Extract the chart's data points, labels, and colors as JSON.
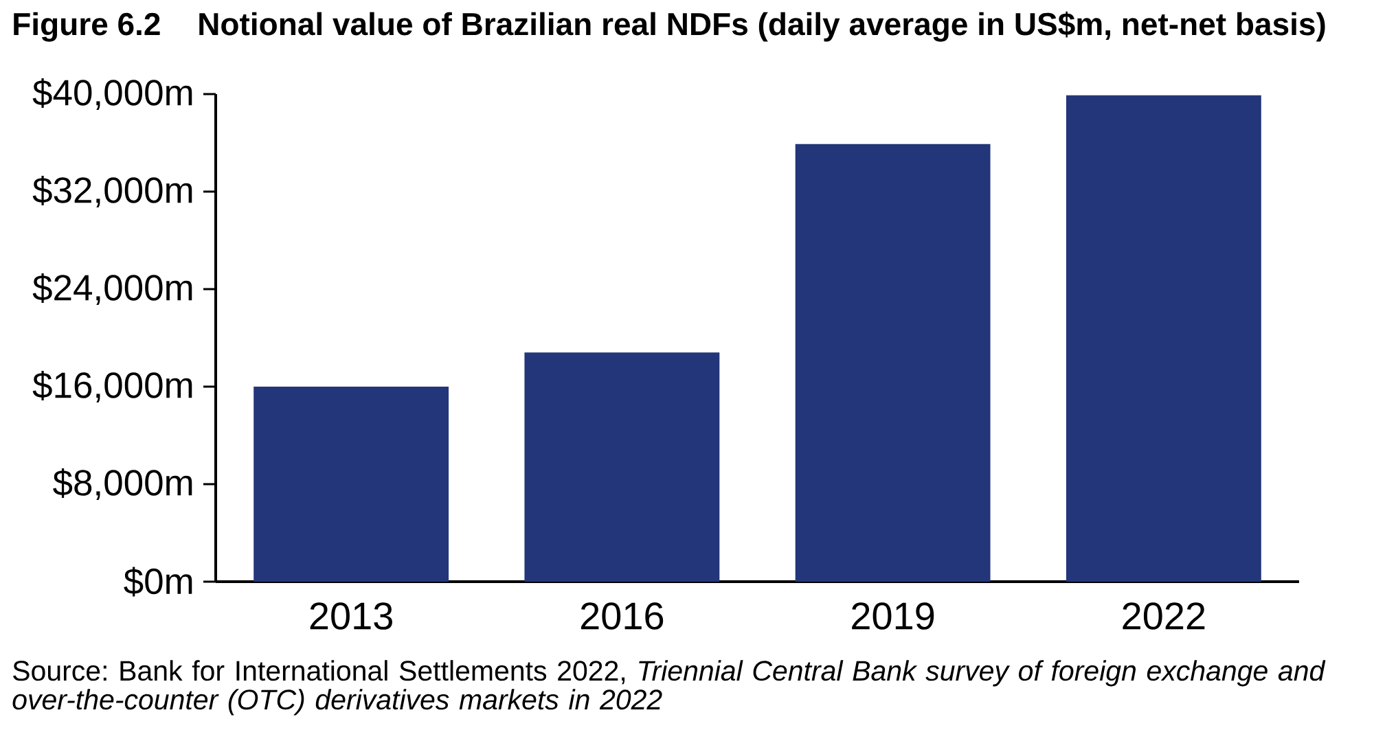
{
  "chart_data": {
    "type": "bar",
    "title": "Figure 6.2",
    "subtitle": "Notional value of Brazilian real NDFs (daily average in US$m, net-net basis)",
    "categories": [
      "2013",
      "2016",
      "2019",
      "2022"
    ],
    "values": [
      16000,
      18800,
      35900,
      39900
    ],
    "color": "#23367a",
    "ylim": [
      0,
      40000
    ],
    "yticks": [
      {
        "value": 0,
        "label": "$0m"
      },
      {
        "value": 8000,
        "label": "$8,000m"
      },
      {
        "value": 16000,
        "label": "$16,000m"
      },
      {
        "value": 24000,
        "label": "$24,000m"
      },
      {
        "value": 32000,
        "label": "$32,000m"
      },
      {
        "value": 40000,
        "label": "$40,000m"
      }
    ],
    "annotations": [
      "Source: Bank for International Settlements 2022, *Triennial Central Bank survey of foreign exchange and over-the-counter (OTC) derivatives markets in 2022*"
    ]
  }
}
